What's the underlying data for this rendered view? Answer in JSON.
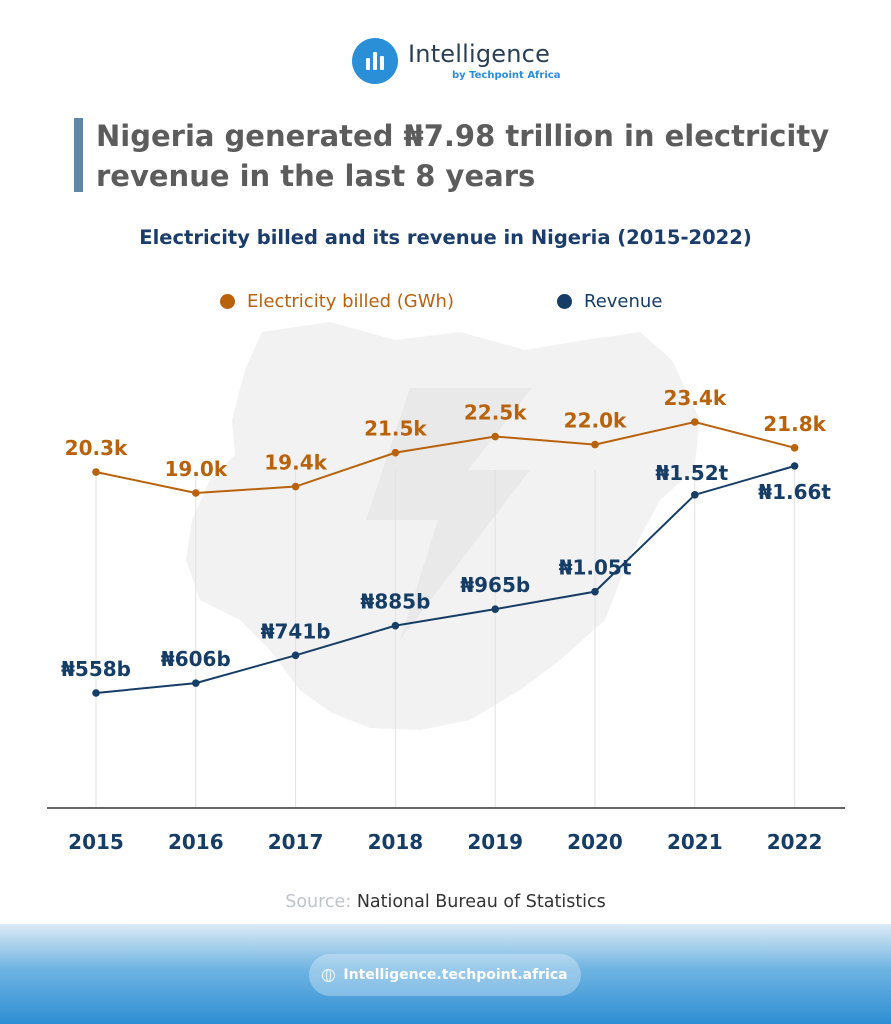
{
  "brand": {
    "name": "Intelligence",
    "sub": "by Techpoint Africa",
    "url": "Intelligence.techpoint.africa",
    "accent": "#2b8fd8"
  },
  "headline": "Nigeria generated ₦7.98 trillion in electricity revenue in the last 8 years",
  "source": {
    "label": "Source:",
    "text": "National Bureau of Statistics"
  },
  "chart_data": {
    "type": "line",
    "title": "Electricity billed and its revenue in Nigeria (2015-2022)",
    "legend_position": "top",
    "grid": false,
    "x": [
      "2015",
      "2016",
      "2017",
      "2018",
      "2019",
      "2020",
      "2021",
      "2022"
    ],
    "series": [
      {
        "name": "Electricity billed (GWh)",
        "color": "#b9620c",
        "values": [
          20.3,
          19.0,
          19.4,
          21.5,
          22.5,
          22.0,
          23.4,
          21.8
        ],
        "labels": [
          "20.3k",
          "19.0k",
          "19.4k",
          "21.5k",
          "22.5k",
          "22.0k",
          "23.4k",
          "21.8k"
        ]
      },
      {
        "name": "Revenue",
        "color": "#163d66",
        "values": [
          558,
          606,
          741,
          885,
          965,
          1050,
          1520,
          1660
        ],
        "labels": [
          "₦558b",
          "₦606b",
          "₦741b",
          "₦885b",
          "₦965b",
          "₦1.05t",
          "₦1.52t",
          "₦1.66t"
        ]
      }
    ]
  }
}
